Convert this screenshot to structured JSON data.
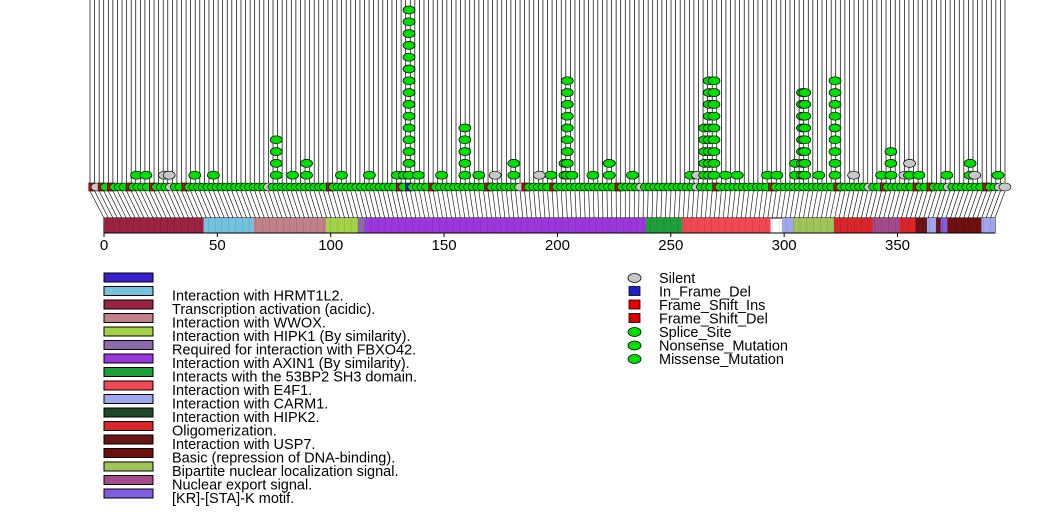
{
  "chart_data": {
    "type": "lollipop",
    "title": "",
    "xlabel": "",
    "ylabel": "",
    "protein_length": 393,
    "xlim": [
      0,
      393
    ],
    "axis": {
      "ticks": [
        0,
        50,
        100,
        150,
        200,
        250,
        300,
        350
      ],
      "tick_labels": [
        "0",
        "50",
        "100",
        "150",
        "200",
        "250",
        "300",
        "350"
      ]
    },
    "colors": {
      "silent": "#c8c8c8",
      "in_frame_del": "#1f1fcc",
      "frame_shift_ins": "#ee0000",
      "frame_shift_del": "#dd0000",
      "splice_site": "#00dd00",
      "nonsense": "#00dd00",
      "missense": "#00dd00"
    },
    "domains": [
      {
        "name": "Transcription activation (acidic).",
        "start": 1,
        "end": 44,
        "color": "#9b2243"
      },
      {
        "name": "Interaction with HRMT1L2.",
        "start": 45,
        "end": 66,
        "color": "#73c2e0"
      },
      {
        "name": "Interaction with WWOX.",
        "start": 67,
        "end": 98,
        "color": "#c1818a"
      },
      {
        "name": "Interaction with HIPK1 (By similarity).",
        "start": 99,
        "end": 113,
        "color": "#a4d247"
      },
      {
        "name": "Required for interaction with FBXO42.",
        "start": 113,
        "end": 116,
        "color": "#8c6aac"
      },
      {
        "name": "Interaction with AXIN1 (By similarity).",
        "start": 116,
        "end": 240,
        "color": "#9b38dc"
      },
      {
        "name": "Interacts with the 53BP2 SH3 domain.",
        "start": 240,
        "end": 256,
        "color": "#1f9f3a"
      },
      {
        "name": "Interaction with E4F1.",
        "start": 256,
        "end": 294,
        "color": "#ef4a53"
      },
      {
        "name": "Interaction with CARM1.",
        "start": 300,
        "end": 393,
        "color": "#a1a7ee"
      },
      {
        "name": "Interaction with HIPK2.",
        "start": 309,
        "end": 313,
        "color": "#1e4a2a"
      },
      {
        "name": "Oligomerization.",
        "start": 319,
        "end": 360,
        "color": "#d8262a"
      },
      {
        "name": "Interaction with USP7.",
        "start": 359,
        "end": 363,
        "color": "#6a1515"
      },
      {
        "name": "Basic (repression of DNA-binding).",
        "start": 368,
        "end": 387,
        "color": "#6e1010"
      },
      {
        "name": "Bipartite nuclear localization signal.",
        "start": 305,
        "end": 322,
        "color": "#9fc55a"
      },
      {
        "name": "Nuclear export signal.",
        "start": 340,
        "end": 351,
        "color": "#a34a8a"
      },
      {
        "name": "[KR]-[STA]-K motif.",
        "start": 370,
        "end": 372,
        "color": "#7f5ce0"
      }
    ],
    "hotspots": [
      {
        "pos": 20,
        "count": 2
      },
      {
        "pos": 24,
        "count": 2
      },
      {
        "pos": 32,
        "count": 2,
        "type": "silent"
      },
      {
        "pos": 34,
        "count": 2,
        "type": "silent"
      },
      {
        "pos": 45,
        "count": 2
      },
      {
        "pos": 53,
        "count": 2
      },
      {
        "pos": 80,
        "count": 5
      },
      {
        "pos": 87,
        "count": 2
      },
      {
        "pos": 93,
        "count": 3
      },
      {
        "pos": 108,
        "count": 2
      },
      {
        "pos": 120,
        "count": 2
      },
      {
        "pos": 132,
        "count": 2
      },
      {
        "pos": 135,
        "count": 2
      },
      {
        "pos": 137,
        "count": 16
      },
      {
        "pos": 141,
        "count": 2
      },
      {
        "pos": 151,
        "count": 2
      },
      {
        "pos": 161,
        "count": 6
      },
      {
        "pos": 167,
        "count": 2
      },
      {
        "pos": 174,
        "count": 2,
        "type": "silent"
      },
      {
        "pos": 182,
        "count": 3
      },
      {
        "pos": 193,
        "count": 2,
        "type": "silent"
      },
      {
        "pos": 198,
        "count": 2
      },
      {
        "pos": 204,
        "count": 3
      },
      {
        "pos": 205,
        "count": 10
      },
      {
        "pos": 207,
        "count": 2
      },
      {
        "pos": 216,
        "count": 2
      },
      {
        "pos": 223,
        "count": 3
      },
      {
        "pos": 233,
        "count": 2
      },
      {
        "pos": 258,
        "count": 2
      },
      {
        "pos": 261,
        "count": 2,
        "type": "silent"
      },
      {
        "pos": 264,
        "count": 6
      },
      {
        "pos": 266,
        "count": 10
      },
      {
        "pos": 268,
        "count": 10
      },
      {
        "pos": 273,
        "count": 2
      },
      {
        "pos": 278,
        "count": 2
      },
      {
        "pos": 291,
        "count": 2
      },
      {
        "pos": 295,
        "count": 2
      },
      {
        "pos": 303,
        "count": 3
      },
      {
        "pos": 306,
        "count": 9
      },
      {
        "pos": 307,
        "count": 9
      },
      {
        "pos": 313,
        "count": 2
      },
      {
        "pos": 320,
        "count": 10
      },
      {
        "pos": 328,
        "count": 2,
        "type": "silent"
      },
      {
        "pos": 340,
        "count": 2
      },
      {
        "pos": 344,
        "count": 4
      },
      {
        "pos": 350,
        "count": 2,
        "type": "silent"
      },
      {
        "pos": 352,
        "count": 3,
        "type": "silent"
      },
      {
        "pos": 356,
        "count": 2
      },
      {
        "pos": 368,
        "count": 2
      },
      {
        "pos": 378,
        "count": 3
      },
      {
        "pos": 380,
        "count": 2,
        "type": "silent"
      },
      {
        "pos": 390,
        "count": 2
      }
    ],
    "legend_domains": [
      {
        "label": "",
        "color": "#3a1fcf"
      },
      {
        "label": "Interaction with HRMT1L2.",
        "color": "#73c2e0"
      },
      {
        "label": "Transcription activation (acidic).",
        "color": "#9b2243"
      },
      {
        "label": "Interaction with WWOX.",
        "color": "#c1818a"
      },
      {
        "label": "Interaction with HIPK1 (By similarity).",
        "color": "#a4d247"
      },
      {
        "label": "Required for interaction with FBXO42.",
        "color": "#8c6aac"
      },
      {
        "label": "Interaction with AXIN1 (By similarity).",
        "color": "#9b38dc"
      },
      {
        "label": "Interacts with the 53BP2 SH3 domain.",
        "color": "#1f9f3a"
      },
      {
        "label": "Interaction with E4F1.",
        "color": "#ef4a53"
      },
      {
        "label": "Interaction with CARM1.",
        "color": "#a1a7ee"
      },
      {
        "label": "Interaction with HIPK2.",
        "color": "#1e4a2a"
      },
      {
        "label": "Oligomerization.",
        "color": "#d8262a"
      },
      {
        "label": "Interaction with USP7.",
        "color": "#6a1515"
      },
      {
        "label": "Basic (repression of DNA-binding).",
        "color": "#6e1010"
      },
      {
        "label": "Bipartite nuclear localization signal.",
        "color": "#9fc55a"
      },
      {
        "label": "Nuclear export signal.",
        "color": "#a34a8a"
      },
      {
        "label": "[KR]-[STA]-K motif.",
        "color": "#7f5ce0"
      }
    ],
    "legend_mutations": [
      {
        "label": "Silent",
        "shape": "circle",
        "color": "#c8c8c8"
      },
      {
        "label": "In_Frame_Del",
        "shape": "square",
        "color": "#1f1fcc"
      },
      {
        "label": "Frame_Shift_Ins",
        "shape": "square",
        "color": "#ee0000"
      },
      {
        "label": "Frame_Shift_Del",
        "shape": "square",
        "color": "#dd0000"
      },
      {
        "label": "Splice_Site",
        "shape": "circle",
        "color": "#00dd00"
      },
      {
        "label": "Nonsense_Mutation",
        "shape": "circle",
        "color": "#00dd00"
      },
      {
        "label": "Missense_Mutation",
        "shape": "circle",
        "color": "#00dd00"
      }
    ]
  }
}
